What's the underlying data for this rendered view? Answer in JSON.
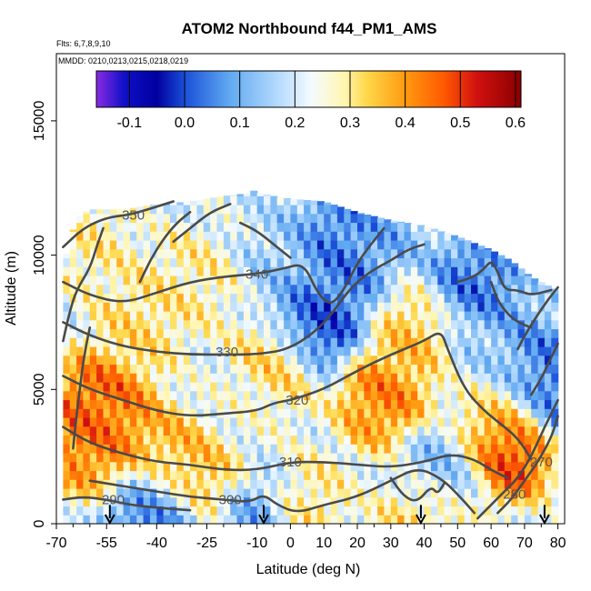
{
  "title": "ATOM2 Northbound f44_PM1_AMS",
  "subtitle_flights": "Flts: 6,7,8,9,10",
  "subtitle_dates": "MMDD: 0210,0213,0215,0218,0219",
  "chart_data": {
    "type": "heatmap",
    "title": "ATOM2 Northbound f44_PM1_AMS",
    "xlabel": "Latitude (deg N)",
    "ylabel": "Altitude (m)",
    "xlim": [
      -70,
      82
    ],
    "ylim": [
      0,
      17500
    ],
    "x_ticks": [
      -70,
      -55,
      -40,
      -25,
      -10,
      0,
      10,
      20,
      30,
      40,
      50,
      60,
      70,
      80
    ],
    "x_tick_labels": [
      "-70",
      "-55",
      "-40",
      "-25",
      "-10",
      "0",
      "10",
      "20",
      "30",
      "40",
      "50",
      "60",
      "70",
      "80"
    ],
    "y_ticks": [
      0,
      5000,
      10000,
      15000
    ],
    "y_tick_labels": [
      "0",
      "5000",
      "10000",
      "15000"
    ],
    "colorbar": {
      "range": [
        -0.16,
        0.61
      ],
      "ticks": [
        -0.1,
        0.0,
        0.1,
        0.2,
        0.3,
        0.4,
        0.5,
        0.6
      ],
      "tick_labels": [
        "-0.1",
        "0.0",
        "0.1",
        "0.2",
        "0.3",
        "0.4",
        "0.5",
        "0.6"
      ],
      "stops": [
        {
          "v": -0.16,
          "c": "#8a2be2"
        },
        {
          "v": -0.11,
          "c": "#1010c8"
        },
        {
          "v": -0.05,
          "c": "#0000a0"
        },
        {
          "v": 0.0,
          "c": "#1a4fd8"
        },
        {
          "v": 0.08,
          "c": "#5fa8f0"
        },
        {
          "v": 0.18,
          "c": "#bfe0ff"
        },
        {
          "v": 0.23,
          "c": "#f5fbff"
        },
        {
          "v": 0.29,
          "c": "#fff6b0"
        },
        {
          "v": 0.33,
          "c": "#ffd84a"
        },
        {
          "v": 0.4,
          "c": "#ff9a10"
        },
        {
          "v": 0.47,
          "c": "#ff5a00"
        },
        {
          "v": 0.53,
          "c": "#d21010"
        },
        {
          "v": 0.61,
          "c": "#8a0000"
        }
      ]
    },
    "data_ceiling": [
      [
        -70,
        9000
      ],
      [
        -68,
        9600
      ],
      [
        -66,
        10500
      ],
      [
        -64,
        11400
      ],
      [
        -60,
        11700
      ],
      [
        -50,
        11700
      ],
      [
        -40,
        11900
      ],
      [
        -30,
        12000
      ],
      [
        -20,
        12200
      ],
      [
        -13,
        12300
      ],
      [
        -11,
        12400
      ],
      [
        -9,
        12300
      ],
      [
        0,
        12100
      ],
      [
        10,
        12000
      ],
      [
        20,
        11600
      ],
      [
        30,
        11300
      ],
      [
        40,
        11100
      ],
      [
        50,
        10700
      ],
      [
        60,
        10200
      ],
      [
        66,
        9800
      ],
      [
        72,
        9200
      ],
      [
        78,
        8800
      ],
      [
        80,
        8700
      ]
    ],
    "field_anchors": [
      {
        "lat": -57,
        "alt": 4400,
        "v": 0.5
      },
      {
        "lat": -52,
        "alt": 3500,
        "v": 0.42
      },
      {
        "lat": -62,
        "alt": 3100,
        "v": 0.45
      },
      {
        "lat": -35,
        "alt": 2300,
        "v": 0.4
      },
      {
        "lat": -25,
        "alt": 1800,
        "v": 0.38
      },
      {
        "lat": -45,
        "alt": 7500,
        "v": 0.33
      },
      {
        "lat": -30,
        "alt": 9000,
        "v": 0.3
      },
      {
        "lat": 28,
        "alt": 4700,
        "v": 0.45
      },
      {
        "lat": 38,
        "alt": 6900,
        "v": 0.36
      },
      {
        "lat": 60,
        "alt": 4200,
        "v": 0.34
      },
      {
        "lat": 65,
        "alt": 2900,
        "v": 0.55
      },
      {
        "lat": 40,
        "alt": 300,
        "v": 0.35
      },
      {
        "lat": -5,
        "alt": 5800,
        "v": 0.35
      },
      {
        "lat": 3,
        "alt": 600,
        "v": 0.33
      },
      {
        "lat": 8,
        "alt": 7500,
        "v": -0.04
      },
      {
        "lat": 12,
        "alt": 9000,
        "v": 0.05
      },
      {
        "lat": 15,
        "alt": 10500,
        "v": 0.0
      },
      {
        "lat": 25,
        "alt": 11000,
        "v": 0.1
      },
      {
        "lat": -40,
        "alt": 600,
        "v": 0.0
      },
      {
        "lat": -10,
        "alt": 300,
        "v": 0.05
      },
      {
        "lat": 70,
        "alt": 6000,
        "v": 0.05
      },
      {
        "lat": 78,
        "alt": 5000,
        "v": 0.0
      },
      {
        "lat": 55,
        "alt": 8800,
        "v": 0.02
      },
      {
        "lat": 45,
        "alt": 2000,
        "v": 0.1
      },
      {
        "lat": -15,
        "alt": 4000,
        "v": 0.22
      },
      {
        "lat": -60,
        "alt": 10500,
        "v": 0.3
      },
      {
        "lat": 0,
        "alt": 9800,
        "v": 0.15
      },
      {
        "lat": 58,
        "alt": 6200,
        "v": 0.15
      }
    ],
    "contours": [
      {
        "label": "290",
        "label_at": [
          -53,
          900
        ],
        "points": [
          [
            -68,
            900
          ],
          [
            -62,
            1000
          ],
          [
            -55,
            900
          ],
          [
            -48,
            700
          ],
          [
            -40,
            600
          ],
          [
            -30,
            500
          ]
        ]
      },
      {
        "label": "300",
        "label_at": [
          -18,
          900
        ],
        "points": [
          [
            -60,
            1600
          ],
          [
            -50,
            1400
          ],
          [
            -40,
            1200
          ],
          [
            -30,
            1000
          ],
          [
            -20,
            900
          ],
          [
            -12,
            800
          ],
          [
            -8,
            1100
          ],
          [
            -4,
            700
          ],
          [
            2,
            400
          ],
          [
            10,
            700
          ],
          [
            20,
            1000
          ],
          [
            30,
            1600
          ],
          [
            38,
            2100
          ],
          [
            45,
            1700
          ],
          [
            50,
            1100
          ],
          [
            55,
            400
          ]
        ]
      },
      {
        "label": "310",
        "label_at": [
          0,
          2300
        ],
        "points": [
          [
            -68,
            3600
          ],
          [
            -60,
            3000
          ],
          [
            -50,
            2600
          ],
          [
            -40,
            2300
          ],
          [
            -30,
            2200
          ],
          [
            -20,
            2000
          ],
          [
            -10,
            2000
          ],
          [
            0,
            2300
          ],
          [
            10,
            2300
          ],
          [
            20,
            2200
          ],
          [
            30,
            2100
          ],
          [
            40,
            2300
          ],
          [
            48,
            2600
          ],
          [
            55,
            2400
          ],
          [
            60,
            2000
          ],
          [
            65,
            1700
          ]
        ]
      },
      {
        "label": "320",
        "label_at": [
          2,
          4600
        ],
        "points": [
          [
            -68,
            5500
          ],
          [
            -60,
            5000
          ],
          [
            -50,
            4600
          ],
          [
            -40,
            4200
          ],
          [
            -30,
            4000
          ],
          [
            -20,
            4100
          ],
          [
            -10,
            4200
          ],
          [
            -5,
            4500
          ],
          [
            0,
            4600
          ],
          [
            10,
            5000
          ],
          [
            20,
            5700
          ],
          [
            30,
            6300
          ],
          [
            40,
            6800
          ],
          [
            45,
            7200
          ],
          [
            47,
            6500
          ],
          [
            52,
            5000
          ],
          [
            58,
            4200
          ],
          [
            62,
            3800
          ],
          [
            68,
            3200
          ],
          [
            72,
            2400
          ]
        ]
      },
      {
        "label": "330",
        "label_at": [
          -19,
          6400
        ],
        "points": [
          [
            -68,
            7500
          ],
          [
            -60,
            7000
          ],
          [
            -50,
            6600
          ],
          [
            -40,
            6400
          ],
          [
            -30,
            6300
          ],
          [
            -20,
            6300
          ],
          [
            -10,
            6300
          ],
          [
            0,
            6500
          ],
          [
            10,
            7400
          ],
          [
            18,
            8800
          ],
          [
            24,
            9400
          ],
          [
            30,
            9800
          ],
          [
            35,
            10200
          ],
          [
            40,
            10400
          ]
        ]
      },
      {
        "label": "340",
        "label_at": [
          -10,
          9300
        ],
        "points": [
          [
            -68,
            9000
          ],
          [
            -60,
            8500
          ],
          [
            -50,
            8200
          ],
          [
            -40,
            8600
          ],
          [
            -30,
            9000
          ],
          [
            -20,
            9200
          ],
          [
            -10,
            9300
          ],
          [
            -2,
            9500
          ],
          [
            4,
            9700
          ],
          [
            8,
            8600
          ],
          [
            12,
            8100
          ],
          [
            16,
            8700
          ],
          [
            20,
            9700
          ],
          [
            24,
            10400
          ],
          [
            28,
            11000
          ]
        ]
      },
      {
        "label": "350",
        "label_at": [
          -47,
          11500
        ],
        "points": [
          [
            -68,
            10300
          ],
          [
            -62,
            11000
          ],
          [
            -55,
            11400
          ],
          [
            -48,
            11500
          ],
          [
            -40,
            11800
          ],
          [
            -35,
            12000
          ]
        ]
      },
      {
        "label": "270",
        "label_at": [
          75,
          2300
        ],
        "points": [
          [
            62,
            400
          ],
          [
            66,
            900
          ],
          [
            70,
            1600
          ],
          [
            74,
            2300
          ],
          [
            78,
            3200
          ],
          [
            80,
            4000
          ]
        ]
      },
      {
        "label": "280",
        "label_at": [
          67,
          1100
        ],
        "points": [
          [
            56,
            200
          ],
          [
            60,
            700
          ],
          [
            64,
            1200
          ],
          [
            68,
            1700
          ],
          [
            72,
            2500
          ],
          [
            76,
            3600
          ],
          [
            80,
            4600
          ]
        ]
      },
      {
        "label": "",
        "label_at": null,
        "points": [
          [
            -68,
            6800
          ],
          [
            -66,
            7900
          ],
          [
            -64,
            8700
          ],
          [
            -60,
            9500
          ],
          [
            -58,
            10300
          ],
          [
            -56,
            11000
          ]
        ]
      },
      {
        "label": "",
        "label_at": null,
        "points": [
          [
            -65,
            2800
          ],
          [
            -64,
            4000
          ],
          [
            -63,
            5000
          ],
          [
            -62,
            6000
          ],
          [
            -61,
            6700
          ],
          [
            -60,
            7300
          ]
        ]
      },
      {
        "label": "",
        "label_at": null,
        "points": [
          [
            -35,
            10500
          ],
          [
            -30,
            11000
          ],
          [
            -24,
            11600
          ],
          [
            -18,
            11900
          ]
        ]
      },
      {
        "label": "",
        "label_at": null,
        "points": [
          [
            -45,
            9000
          ],
          [
            -42,
            9800
          ],
          [
            -38,
            10600
          ],
          [
            -34,
            11200
          ],
          [
            -30,
            11600
          ]
        ]
      },
      {
        "label": "",
        "label_at": null,
        "points": [
          [
            -15,
            11200
          ],
          [
            -10,
            10900
          ],
          [
            -5,
            10400
          ],
          [
            0,
            9900
          ]
        ]
      },
      {
        "label": "",
        "label_at": null,
        "points": [
          [
            50,
            9000
          ],
          [
            55,
            9200
          ],
          [
            58,
            9500
          ],
          [
            60,
            9800
          ],
          [
            62,
            9400
          ],
          [
            64,
            8700
          ],
          [
            68,
            8700
          ],
          [
            72,
            8500
          ],
          [
            78,
            8700
          ]
        ]
      },
      {
        "label": "",
        "label_at": null,
        "points": [
          [
            60,
            9000
          ],
          [
            62,
            8300
          ],
          [
            65,
            7800
          ],
          [
            68,
            7500
          ],
          [
            72,
            7300
          ]
        ]
      },
      {
        "label": "",
        "label_at": null,
        "points": [
          [
            68,
            6500
          ],
          [
            70,
            7000
          ],
          [
            74,
            7800
          ],
          [
            78,
            8500
          ],
          [
            80,
            8800
          ]
        ]
      },
      {
        "label": "",
        "label_at": null,
        "points": [
          [
            72,
            4800
          ],
          [
            75,
            5400
          ],
          [
            78,
            6200
          ],
          [
            80,
            6700
          ]
        ]
      },
      {
        "label": "",
        "label_at": null,
        "points": [
          [
            30,
            1700
          ],
          [
            34,
            1000
          ],
          [
            38,
            800
          ],
          [
            42,
            1400
          ],
          [
            44,
            1100
          ],
          [
            46,
            1500
          ]
        ]
      }
    ],
    "flight_markers_lat": [
      -54,
      -8,
      39,
      76
    ],
    "flight_markers_alt_top": 700
  }
}
